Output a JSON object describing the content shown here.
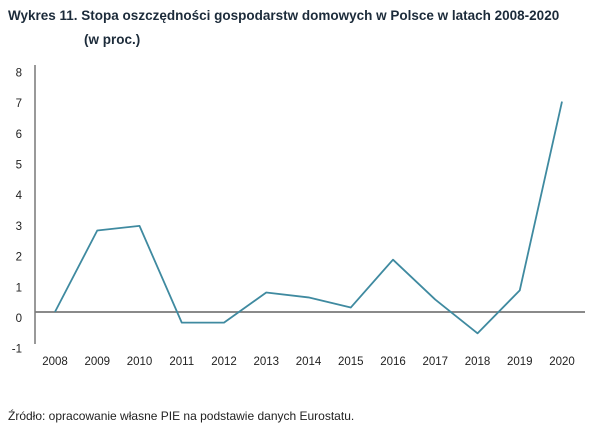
{
  "chart_data": {
    "type": "line",
    "title": "Wykres 11.  Stopa oszczędności gospodarstw domowych w Polsce w latach 2008-2020",
    "subtitle": "(w proc.)",
    "xlabel": "",
    "ylabel": "",
    "categories": [
      "2008",
      "2009",
      "2010",
      "2011",
      "2012",
      "2013",
      "2014",
      "2015",
      "2016",
      "2017",
      "2018",
      "2019",
      "2020"
    ],
    "series": [
      {
        "name": "Stopa oszczędności",
        "values": [
          0.2,
          2.85,
          3.0,
          -0.15,
          -0.15,
          0.83,
          0.67,
          0.34,
          1.9,
          0.6,
          -0.5,
          0.9,
          7.05
        ]
      }
    ],
    "yticks": [
      "8",
      "7",
      "6",
      "5",
      "4",
      "3",
      "2",
      "1",
      "0",
      "-1"
    ],
    "ylim": [
      -1,
      8
    ],
    "grid": false,
    "legend": "none",
    "colors": {
      "line": "#3f8aa0",
      "axis": "#7a7a7a"
    }
  },
  "source": "Źródło: opracowanie własne PIE na podstawie danych Eurostatu."
}
